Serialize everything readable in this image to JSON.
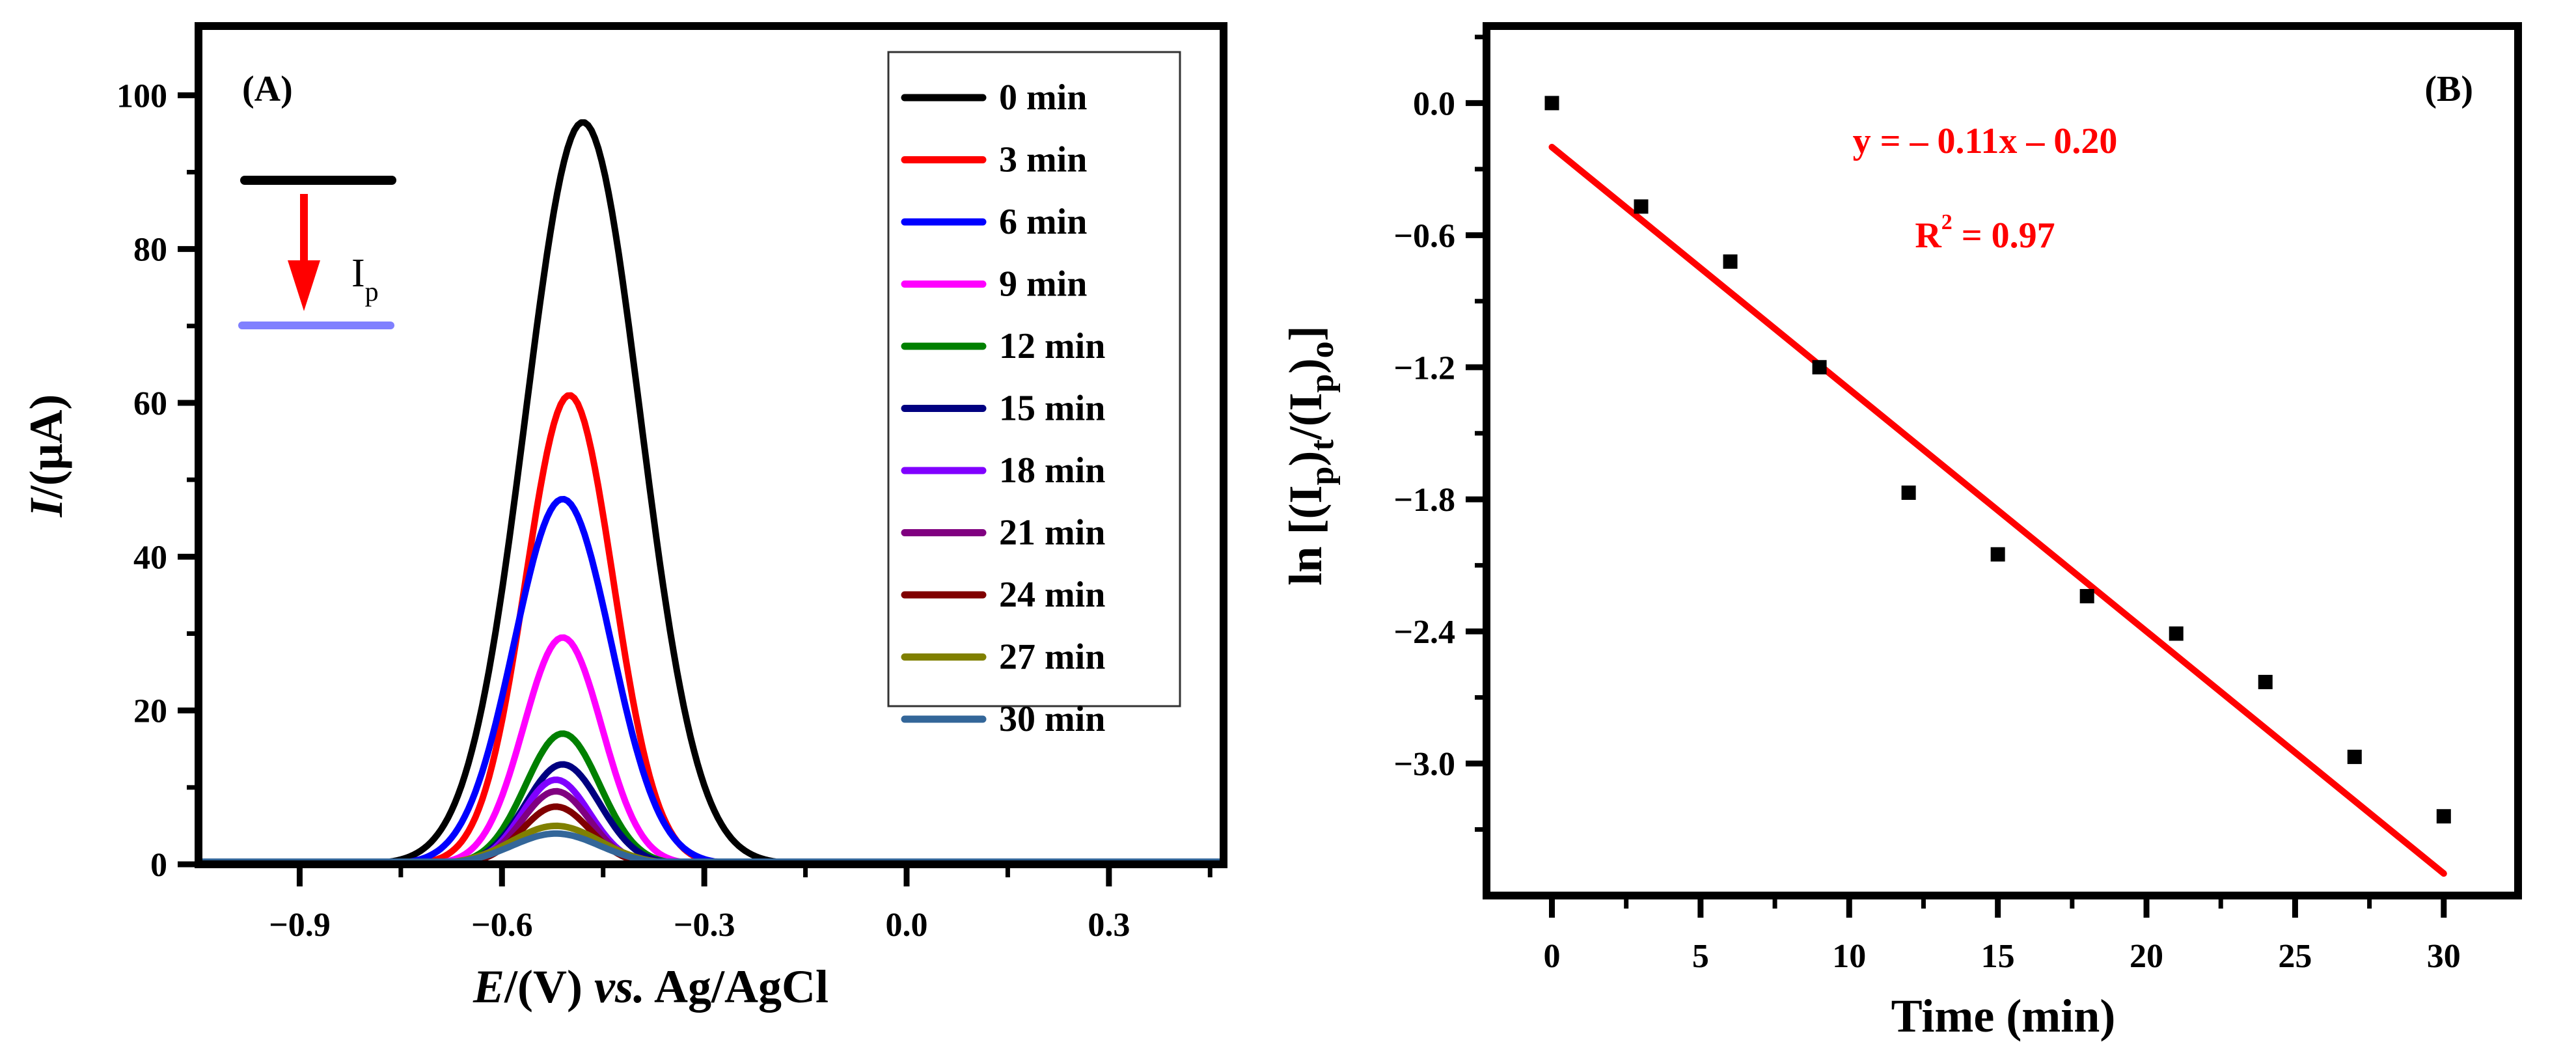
{
  "chart_data": [
    {
      "type": "line",
      "panel_label": "(A)",
      "xlabel_italic": "E",
      "xlabel_unit": "/(V) ",
      "xlabel_vs": "vs.",
      "xlabel_ref": " Ag/AgCl",
      "ylabel_italic": "I",
      "ylabel_unit": "/(μA)",
      "xlim": [
        -1.05,
        0.47
      ],
      "ylim": [
        0,
        109
      ],
      "xticks": [
        -0.9,
        -0.6,
        -0.3,
        0.0,
        0.3
      ],
      "xtick_labels": [
        "−0.9",
        "−0.6",
        "−0.3",
        "0.0",
        "0.3"
      ],
      "yticks": [
        0,
        20,
        40,
        60,
        80,
        100
      ],
      "ytick_labels": [
        "0",
        "20",
        "40",
        "60",
        "80",
        "100"
      ],
      "legend_position": "top-right",
      "inset": {
        "label_main": "I",
        "label_sub": "p",
        "top_line_color": "#000000",
        "bottom_line_color": "#8080ff",
        "arrow_color": "#ff0000"
      },
      "series": [
        {
          "name": "0 min",
          "color": "#000000",
          "peak_E": -0.48,
          "peak_I": 96.5,
          "width": 0.085
        },
        {
          "name": "3 min",
          "color": "#ff0000",
          "peak_E": -0.5,
          "peak_I": 61.0,
          "width": 0.065
        },
        {
          "name": "6 min",
          "color": "#0000ff",
          "peak_E": -0.51,
          "peak_I": 47.5,
          "width": 0.072
        },
        {
          "name": "9 min",
          "color": "#ff00ff",
          "peak_E": -0.51,
          "peak_I": 29.5,
          "width": 0.058
        },
        {
          "name": "12 min",
          "color": "#008000",
          "peak_E": -0.51,
          "peak_I": 17.0,
          "width": 0.055
        },
        {
          "name": "15 min",
          "color": "#000080",
          "peak_E": -0.51,
          "peak_I": 13.0,
          "width": 0.055
        },
        {
          "name": "18 min",
          "color": "#8000ff",
          "peak_E": -0.52,
          "peak_I": 11.0,
          "width": 0.05
        },
        {
          "name": "21 min",
          "color": "#800080",
          "peak_E": -0.52,
          "peak_I": 9.5,
          "width": 0.05
        },
        {
          "name": "24 min",
          "color": "#800000",
          "peak_E": -0.52,
          "peak_I": 7.5,
          "width": 0.05
        },
        {
          "name": "27 min",
          "color": "#808000",
          "peak_E": -0.52,
          "peak_I": 5.0,
          "width": 0.065
        },
        {
          "name": "30 min",
          "color": "#336699",
          "peak_E": -0.52,
          "peak_I": 4.0,
          "width": 0.065
        }
      ]
    },
    {
      "type": "scatter",
      "panel_label": "(B)",
      "xlabel": "Time (min)",
      "ylabel_prefix": "ln [(I",
      "ylabel_sub1": "p",
      "ylabel_mid1": ")",
      "ylabel_sub2": "t",
      "ylabel_mid2": "/(I",
      "ylabel_sub3": "p",
      "ylabel_mid3": ")",
      "ylabel_sub4": "o",
      "ylabel_suffix": "]",
      "xlim": [
        -2.2,
        32.5
      ],
      "ylim": [
        -3.6,
        0.35
      ],
      "xticks": [
        0,
        5,
        10,
        15,
        20,
        25,
        30
      ],
      "xtick_labels": [
        "0",
        "5",
        "10",
        "15",
        "20",
        "25",
        "30"
      ],
      "yticks": [
        0.0,
        -0.6,
        -1.2,
        -1.8,
        -2.4,
        -3.0
      ],
      "ytick_labels": [
        "0.0",
        "−0.6",
        "−1.2",
        "−1.8",
        "−2.4",
        "−3.0"
      ],
      "x": [
        0,
        3,
        6,
        9,
        12,
        15,
        18,
        21,
        24,
        27,
        30
      ],
      "y": [
        0.0,
        -0.47,
        -0.72,
        -1.2,
        -1.77,
        -2.05,
        -2.24,
        -2.41,
        -2.63,
        -2.97,
        -3.24
      ],
      "marker_color": "#000000",
      "fit": {
        "slope": -0.11,
        "intercept": -0.2,
        "x_range": [
          0,
          30
        ],
        "color": "#ff0000"
      },
      "equation_text": "y = – 0.11x – 0.20",
      "r2_label": "R",
      "r2_sup": "2",
      "r2_value": " = 0.97"
    }
  ]
}
